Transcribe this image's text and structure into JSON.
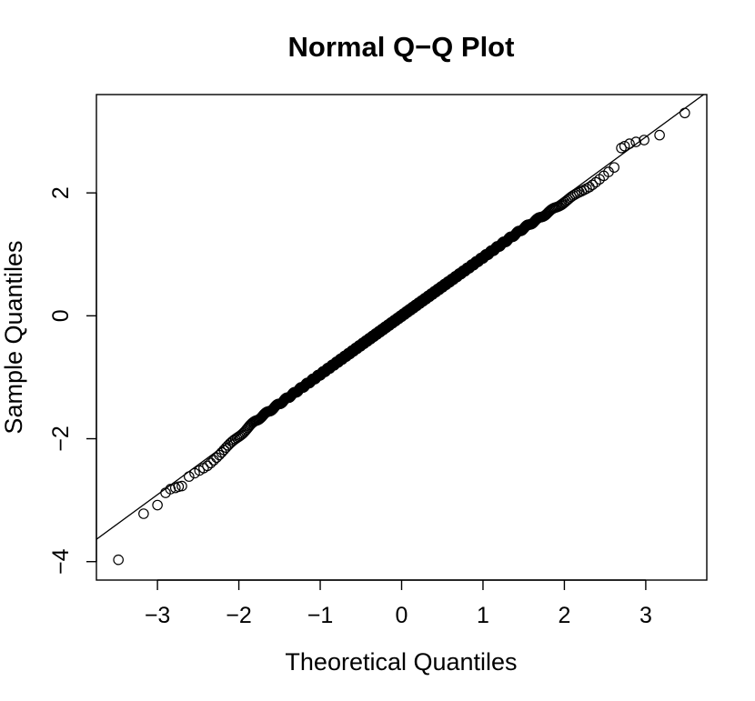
{
  "chart_data": {
    "type": "scatter",
    "title": "Normal Q−Q Plot",
    "xlabel": "Theoretical Quantiles",
    "ylabel": "Sample Quantiles",
    "xlim": [
      -3.75,
      3.75
    ],
    "ylim": [
      -4.3,
      3.6
    ],
    "x_ticks": [
      -3,
      -2,
      -1,
      0,
      1,
      2,
      3
    ],
    "x_tick_labels": [
      "−3",
      "−2",
      "−1",
      "0",
      "1",
      "2",
      "3"
    ],
    "y_ticks": [
      -4,
      -2,
      0,
      2
    ],
    "y_tick_labels": [
      "−4",
      "−2",
      "0",
      "2"
    ],
    "grid": false,
    "reference_line": {
      "intercept": 0.0,
      "slope": 0.97
    },
    "n_points": 1000,
    "tail_points": [
      [
        -3.48,
        -3.97
      ],
      [
        -3.17,
        -3.22
      ],
      [
        -3.0,
        -3.08
      ],
      [
        -2.9,
        -2.88
      ],
      [
        -2.84,
        -2.82
      ],
      [
        -2.78,
        -2.8
      ],
      [
        -2.74,
        -2.78
      ],
      [
        -2.7,
        -2.77
      ],
      [
        2.7,
        2.73
      ],
      [
        2.74,
        2.76
      ],
      [
        2.8,
        2.8
      ],
      [
        2.88,
        2.83
      ],
      [
        2.98,
        2.86
      ],
      [
        3.17,
        2.94
      ],
      [
        3.48,
        3.3
      ]
    ]
  }
}
